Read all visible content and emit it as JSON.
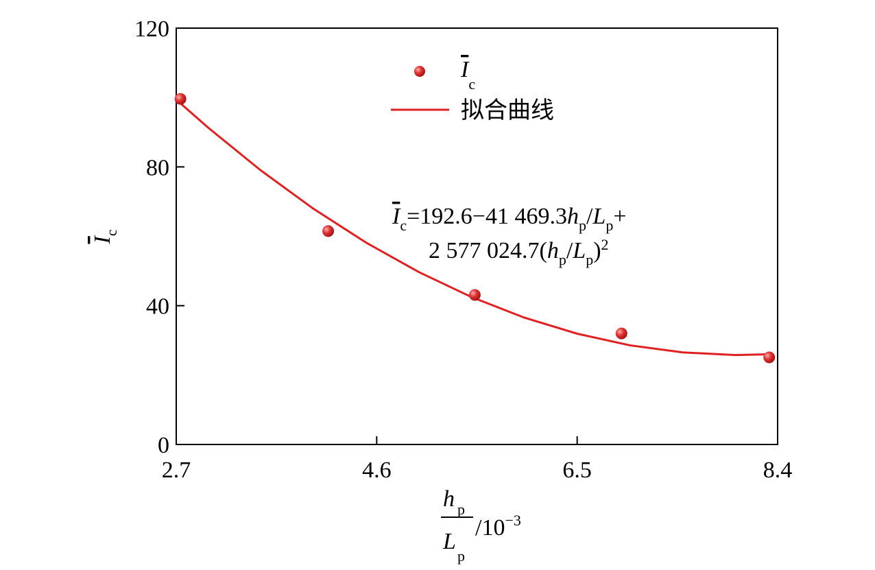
{
  "chart_data": {
    "type": "scatter",
    "ylabel": [
      "I",
      "c"
    ],
    "xlabel": [
      "h",
      "p",
      "L",
      "p",
      "/10",
      "−3"
    ],
    "annotation": [
      [
        "I",
        "c",
        "=192.6−41 469.3",
        "h",
        "p",
        "/",
        "L",
        "p",
        "+"
      ],
      [
        "2 577 024.7(",
        "h",
        "p",
        "/",
        "L",
        "p",
        ")",
        "2"
      ]
    ],
    "xlim": [
      2.7,
      8.4
    ],
    "xticks": [
      2.7,
      4.6,
      6.5,
      8.4
    ],
    "ylim": [
      0,
      120
    ],
    "yticks": [
      0,
      40,
      80,
      120
    ],
    "series": [
      {
        "name": [
          "I",
          "c"
        ],
        "color": "#e03434",
        "x": [
          2.74,
          4.14,
          5.53,
          6.92,
          8.32
        ],
        "values": [
          99.6,
          61.5,
          43.1,
          32.0,
          25.1
        ]
      },
      {
        "name": "拟合曲线",
        "color": "#e02020",
        "x": [
          2.75,
          3.0,
          3.5,
          4.0,
          4.5,
          5.0,
          5.5,
          6.0,
          6.5,
          7.0,
          7.5,
          8.0,
          8.35
        ],
        "values": [
          98.05,
          91.38,
          79.03,
          67.95,
          58.17,
          49.68,
          42.47,
          36.55,
          31.93,
          28.58,
          26.54,
          25.78,
          26.01
        ]
      }
    ]
  }
}
